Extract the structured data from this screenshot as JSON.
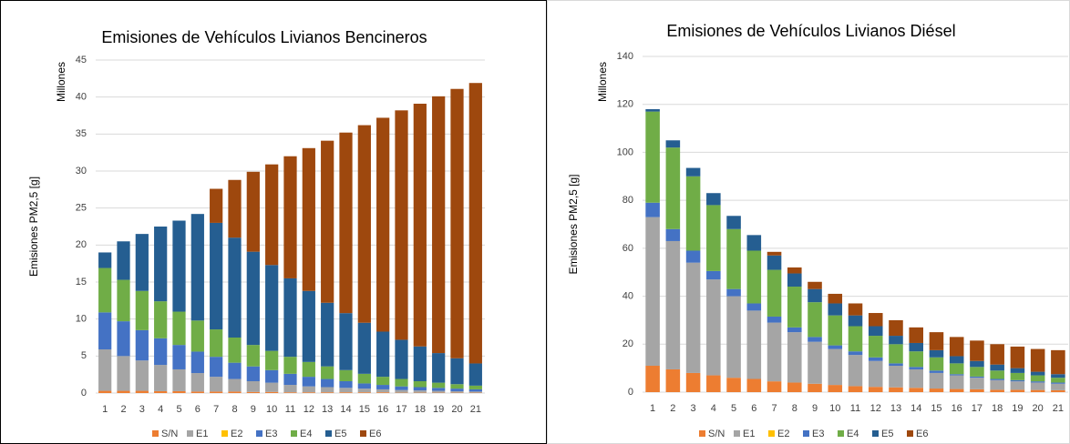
{
  "chart_data": [
    {
      "type": "bar",
      "stacked": true,
      "title": "Emisiones de Vehículos Livianos Bencineros",
      "ylabel": "Emisiones PM2,5 [g]",
      "units_label": "Millones",
      "categories": [
        "1",
        "2",
        "3",
        "4",
        "5",
        "6",
        "7",
        "8",
        "9",
        "10",
        "11",
        "12",
        "13",
        "14",
        "15",
        "16",
        "17",
        "18",
        "19",
        "20",
        "21"
      ],
      "ylim": [
        0,
        45
      ],
      "yticks": [
        0,
        5,
        10,
        15,
        20,
        25,
        30,
        35,
        40,
        45
      ],
      "grid": true,
      "series": [
        {
          "name": "S/N",
          "color": "#ed7d31",
          "values": [
            0.3,
            0.3,
            0.3,
            0.25,
            0.25,
            0.2,
            0.2,
            0.2,
            0.15,
            0.15,
            0.1,
            0.1,
            0.1,
            0.1,
            0.1,
            0.1,
            0.05,
            0.05,
            0.05,
            0.05,
            0.05
          ]
        },
        {
          "name": "E1",
          "color": "#a5a5a5",
          "values": [
            5.6,
            4.7,
            4.1,
            3.55,
            2.95,
            2.5,
            2.0,
            1.7,
            1.45,
            1.25,
            1.0,
            0.8,
            0.7,
            0.6,
            0.5,
            0.4,
            0.35,
            0.3,
            0.25,
            0.2,
            0.15
          ]
        },
        {
          "name": "E2",
          "color": "#ffc000",
          "values": [
            0,
            0,
            0,
            0,
            0,
            0,
            0,
            0,
            0,
            0,
            0,
            0,
            0,
            0,
            0,
            0,
            0,
            0,
            0,
            0,
            0
          ]
        },
        {
          "name": "E3",
          "color": "#4472c4",
          "values": [
            5.0,
            4.7,
            4.1,
            3.6,
            3.3,
            2.9,
            2.7,
            2.2,
            2.0,
            1.7,
            1.5,
            1.3,
            1.1,
            0.9,
            0.7,
            0.6,
            0.5,
            0.45,
            0.4,
            0.35,
            0.3
          ]
        },
        {
          "name": "E4",
          "color": "#70ad47",
          "values": [
            6.0,
            5.6,
            5.3,
            5.0,
            4.5,
            4.2,
            3.7,
            3.4,
            2.9,
            2.6,
            2.3,
            2.0,
            1.7,
            1.5,
            1.3,
            1.1,
            1.0,
            0.8,
            0.7,
            0.6,
            0.5
          ]
        },
        {
          "name": "E5",
          "color": "#255e91",
          "values": [
            2.1,
            5.2,
            7.7,
            10.1,
            12.3,
            14.4,
            14.4,
            13.5,
            12.6,
            11.6,
            10.6,
            9.6,
            8.6,
            7.7,
            6.9,
            6.1,
            5.3,
            4.7,
            4.0,
            3.5,
            3.0
          ]
        },
        {
          "name": "E6",
          "color": "#9e480e",
          "values": [
            0,
            0,
            0,
            0,
            0,
            0,
            4.6,
            7.8,
            10.8,
            13.6,
            16.5,
            19.3,
            21.9,
            24.4,
            26.7,
            28.9,
            31.0,
            32.8,
            34.7,
            36.4,
            37.9
          ]
        }
      ]
    },
    {
      "type": "bar",
      "stacked": true,
      "title": "Emisiones de Vehículos Livianos Diésel",
      "ylabel": "Emisiones PM2,5 [g]",
      "units_label": "Millones",
      "categories": [
        "1",
        "2",
        "3",
        "4",
        "5",
        "6",
        "7",
        "8",
        "9",
        "10",
        "11",
        "12",
        "13",
        "14",
        "15",
        "16",
        "17",
        "18",
        "19",
        "20",
        "21"
      ],
      "ylim": [
        0,
        140
      ],
      "yticks": [
        0,
        20,
        40,
        60,
        80,
        100,
        120,
        140
      ],
      "grid": true,
      "series": [
        {
          "name": "S/N",
          "color": "#ed7d31",
          "values": [
            11,
            9.5,
            8,
            7,
            6,
            5.5,
            4.5,
            4,
            3.5,
            3,
            2.5,
            2.2,
            2,
            1.8,
            1.5,
            1.3,
            1.2,
            1,
            1,
            0.9,
            0.8
          ]
        },
        {
          "name": "E1",
          "color": "#a5a5a5",
          "values": [
            62,
            53.5,
            46,
            40,
            34,
            28.5,
            24.5,
            21,
            17.5,
            15,
            13,
            10.8,
            9,
            7.7,
            6.5,
            5.7,
            4.8,
            4,
            3.5,
            3.1,
            2.7
          ]
        },
        {
          "name": "E2",
          "color": "#ffc000",
          "values": [
            0,
            0,
            0,
            0,
            0,
            0,
            0,
            0,
            0,
            0,
            0,
            0,
            0,
            0,
            0,
            0,
            0,
            0,
            0,
            0,
            0
          ]
        },
        {
          "name": "E3",
          "color": "#4472c4",
          "values": [
            6,
            5,
            5,
            3.5,
            3,
            3,
            2.5,
            2,
            2,
            1.5,
            1.5,
            1.5,
            1,
            1,
            1,
            0.5,
            0.5,
            0.5,
            0.5,
            0.5,
            0.5
          ]
        },
        {
          "name": "E4",
          "color": "#70ad47",
          "values": [
            38,
            34,
            31,
            27.5,
            25,
            22,
            19.5,
            17,
            14.5,
            12.5,
            10.5,
            9,
            8,
            6.5,
            5.5,
            4.5,
            4,
            3.5,
            3,
            2.5,
            2
          ]
        },
        {
          "name": "E5",
          "color": "#255e91",
          "values": [
            1,
            3,
            3.5,
            5,
            5.5,
            6.5,
            6,
            5.5,
            5.5,
            5,
            4.5,
            4,
            3.5,
            3.5,
            3,
            3,
            2.5,
            2.5,
            2,
            1.5,
            1.5
          ]
        },
        {
          "name": "E6",
          "color": "#9e480e",
          "values": [
            0,
            0,
            0,
            0,
            0,
            0,
            1.5,
            2.5,
            3,
            4,
            5,
            5.5,
            6.5,
            6.5,
            7.5,
            8,
            8.5,
            8.5,
            9,
            9.5,
            10
          ]
        }
      ]
    }
  ]
}
